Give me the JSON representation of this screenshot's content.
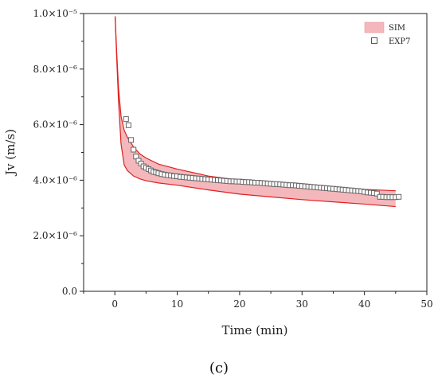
{
  "chart_data": {
    "type": "line",
    "xlabel": "Time (min)",
    "ylabel": "Jv (m/s)",
    "xlim": [
      -5,
      50
    ],
    "ylim": [
      0,
      1e-05
    ],
    "x_ticks": [
      0,
      10,
      20,
      30,
      40,
      50
    ],
    "x_tick_labels": [
      "0",
      "10",
      "20",
      "30",
      "40",
      "50"
    ],
    "y_ticks": [
      0,
      2e-06,
      4e-06,
      6e-06,
      8e-06,
      1e-05
    ],
    "y_tick_labels": [
      "0.0",
      "2.0×10⁻⁶",
      "4.0×10⁻⁶",
      "6.0×10⁻⁶",
      "8.0×10⁻⁶",
      "1.0×10⁻⁵"
    ],
    "legend_position": "top-right",
    "series": [
      {
        "name": "SIM",
        "kind": "band",
        "color": "#e02020",
        "fill": "#f4b8bc",
        "x": [
          0.05,
          0.3,
          0.6,
          1.0,
          1.5,
          2,
          3,
          4,
          5,
          7,
          10,
          15,
          20,
          25,
          30,
          35,
          40,
          45
        ],
        "upper": [
          9.9e-06,
          8.6e-06,
          7.3e-06,
          6.3e-06,
          5.8e-06,
          5.55e-06,
          5.2e-06,
          4.95e-06,
          4.8e-06,
          4.58e-06,
          4.4e-06,
          4.15e-06,
          4e-06,
          3.9e-06,
          3.82e-06,
          3.74e-06,
          3.67e-06,
          3.62e-06
        ],
        "lower": [
          9.9e-06,
          8.4e-06,
          6.8e-06,
          5.3e-06,
          4.55e-06,
          4.35e-06,
          4.15e-06,
          4.05e-06,
          3.98e-06,
          3.9e-06,
          3.82e-06,
          3.65e-06,
          3.5e-06,
          3.4e-06,
          3.3e-06,
          3.22e-06,
          3.14e-06,
          3.05e-06
        ]
      },
      {
        "name": "EXP7",
        "kind": "scatter",
        "marker": "open-square",
        "color": "#666666",
        "x": [
          1.8,
          2.2,
          2.6,
          3.0,
          3.4,
          3.8,
          4.2,
          4.6,
          5.0,
          5.4,
          5.8,
          6.2,
          6.6,
          7.0,
          7.5,
          8.0,
          8.5,
          9.0,
          9.5,
          10.0,
          10.5,
          11.0,
          11.5,
          12.0,
          12.5,
          13.0,
          13.5,
          14.0,
          14.5,
          15.0,
          15.5,
          16.0,
          16.5,
          17.0,
          17.5,
          18.0,
          18.5,
          19.0,
          19.5,
          20.0,
          20.5,
          21.0,
          21.5,
          22.0,
          22.5,
          23.0,
          23.5,
          24.0,
          24.5,
          25.0,
          25.5,
          26.0,
          26.5,
          27.0,
          27.5,
          28.0,
          28.5,
          29.0,
          29.5,
          30.0,
          30.5,
          31.0,
          31.5,
          32.0,
          32.5,
          33.0,
          33.5,
          34.0,
          34.5,
          35.0,
          35.5,
          36.0,
          36.5,
          37.0,
          37.5,
          38.0,
          38.5,
          39.0,
          39.5,
          40.0,
          40.5,
          41.0,
          41.5,
          42.0,
          42.5,
          43.0,
          43.5,
          44.0,
          44.5,
          45.0,
          45.5
        ],
        "y": [
          6.2e-06,
          5.98e-06,
          5.45e-06,
          5.1e-06,
          4.85e-06,
          4.7e-06,
          4.6e-06,
          4.5e-06,
          4.45e-06,
          4.4e-06,
          4.35e-06,
          4.3e-06,
          4.28e-06,
          4.25e-06,
          4.22e-06,
          4.2e-06,
          4.18e-06,
          4.17e-06,
          4.15e-06,
          4.14e-06,
          4.12e-06,
          4.11e-06,
          4.1e-06,
          4.09e-06,
          4.08e-06,
          4.07e-06,
          4.06e-06,
          4.05e-06,
          4.04e-06,
          4.03e-06,
          4.02e-06,
          4.01e-06,
          4e-06,
          3.99e-06,
          3.98e-06,
          3.97e-06,
          3.96e-06,
          3.96e-06,
          3.95e-06,
          3.95e-06,
          3.94e-06,
          3.93e-06,
          3.93e-06,
          3.92e-06,
          3.91e-06,
          3.91e-06,
          3.9e-06,
          3.89e-06,
          3.88e-06,
          3.87e-06,
          3.86e-06,
          3.86e-06,
          3.85e-06,
          3.84e-06,
          3.83e-06,
          3.82e-06,
          3.82e-06,
          3.81e-06,
          3.8e-06,
          3.79e-06,
          3.78e-06,
          3.77e-06,
          3.76e-06,
          3.75e-06,
          3.74e-06,
          3.73e-06,
          3.72e-06,
          3.71e-06,
          3.7e-06,
          3.69e-06,
          3.68e-06,
          3.67e-06,
          3.66e-06,
          3.65e-06,
          3.64e-06,
          3.63e-06,
          3.62e-06,
          3.61e-06,
          3.6e-06,
          3.58e-06,
          3.56e-06,
          3.55e-06,
          3.54e-06,
          3.52e-06,
          3.4e-06,
          3.4e-06,
          3.39e-06,
          3.39e-06,
          3.39e-06,
          3.39e-06,
          3.4e-06
        ]
      }
    ]
  },
  "caption": "(c)"
}
